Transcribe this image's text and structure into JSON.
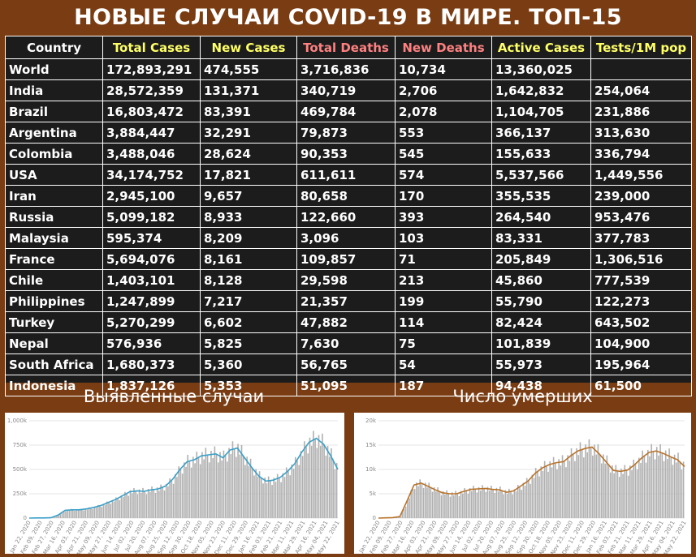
{
  "title": "НОВЫЕ СЛУЧАИ COVID-19 В МИРЕ. ТОП-15",
  "table": {
    "headers": [
      {
        "label": "Country",
        "color": "#ffffff"
      },
      {
        "label": "Total Cases",
        "color": "#ffff66"
      },
      {
        "label": "New Cases",
        "color": "#ffff66"
      },
      {
        "label": "Total Deaths",
        "color": "#ff8080"
      },
      {
        "label": "New Deaths",
        "color": "#ff8080"
      },
      {
        "label": "Active Cases",
        "color": "#ffff66"
      },
      {
        "label": "Tests/1M pop",
        "color": "#ffff66"
      }
    ],
    "rows": [
      [
        "World",
        "172,893,291",
        "474,555",
        "3,716,836",
        "10,734",
        "13,360,025",
        ""
      ],
      [
        "India",
        "28,572,359",
        "131,371",
        "340,719",
        "2,706",
        "1,642,832",
        "254,064"
      ],
      [
        "Brazil",
        "16,803,472",
        "83,391",
        "469,784",
        "2,078",
        "1,104,705",
        "231,886"
      ],
      [
        "Argentina",
        "3,884,447",
        "32,291",
        "79,873",
        "553",
        "366,137",
        "313,630"
      ],
      [
        "Colombia",
        "3,488,046",
        "28,624",
        "90,353",
        "545",
        "155,633",
        "336,794"
      ],
      [
        "USA",
        "34,174,752",
        "17,821",
        "611,611",
        "574",
        "5,537,566",
        "1,449,556"
      ],
      [
        "Iran",
        "2,945,100",
        "9,657",
        "80,658",
        "170",
        "355,535",
        "239,000"
      ],
      [
        "Russia",
        "5,099,182",
        "8,933",
        "122,660",
        "393",
        "264,540",
        "953,476"
      ],
      [
        "Malaysia",
        "595,374",
        "8,209",
        "3,096",
        "103",
        "83,331",
        "377,783"
      ],
      [
        "France",
        "5,694,076",
        "8,161",
        "109,857",
        "71",
        "205,849",
        "1,306,516"
      ],
      [
        "Chile",
        "1,403,101",
        "8,128",
        "29,598",
        "213",
        "45,860",
        "777,539"
      ],
      [
        "Philippines",
        "1,247,899",
        "7,217",
        "21,357",
        "199",
        "55,790",
        "122,273"
      ],
      [
        "Turkey",
        "5,270,299",
        "6,602",
        "47,882",
        "114",
        "82,424",
        "643,502"
      ],
      [
        "Nepal",
        "576,936",
        "5,825",
        "7,630",
        "75",
        "101,839",
        "104,900"
      ],
      [
        "South Africa",
        "1,680,373",
        "5,360",
        "56,765",
        "54",
        "55,973",
        "195,964"
      ],
      [
        "Indonesia",
        "1,837,126",
        "5,353",
        "51,095",
        "187",
        "94,438",
        "61,500"
      ]
    ]
  },
  "panels": {
    "cases_title": "Выявленные случаи",
    "deaths_title": "Число умерших"
  },
  "chart_data": [
    {
      "type": "bar",
      "title": "Выявленные случаи",
      "line_color": "#3aa0c8",
      "bar_color": "#b0b0b0",
      "y_ticks": [
        "0",
        "250k",
        "500k",
        "750k",
        "1,000k"
      ],
      "ylim": [
        0,
        1000000
      ],
      "x_ticks": [
        "Jan 22, 2020",
        "Feb 09, 2020",
        "Feb 27, 2020",
        "Mar 16, 2020",
        "Apr 03, 2020",
        "Apr 21, 2020",
        "May 09, 2020",
        "May 27, 2020",
        "Jun 14, 2020",
        "Jul 02, 2020",
        "Jul 20, 2020",
        "Aug 07, 2020",
        "Aug 25, 2020",
        "Sep 12, 2020",
        "Sep 30, 2020",
        "Oct 18, 2020",
        "Nov 05, 2020",
        "Nov 23, 2020",
        "Dec 11, 2020",
        "Dec 29, 2020",
        "Jan 16, 2021",
        "Feb 03, 2021",
        "Feb 21, 2021",
        "Mar 11, 2021",
        "Mar 29, 2021",
        "Apr 16, 2021",
        "May 04, 2021",
        "May 22, 2021"
      ],
      "values": [
        0,
        2000,
        2000,
        3000,
        30000,
        80000,
        85000,
        85000,
        95000,
        110000,
        130000,
        160000,
        190000,
        230000,
        270000,
        280000,
        275000,
        290000,
        300000,
        330000,
        400000,
        500000,
        580000,
        600000,
        640000,
        650000,
        660000,
        620000,
        700000,
        720000,
        620000,
        520000,
        430000,
        380000,
        390000,
        420000,
        480000,
        560000,
        680000,
        780000,
        820000,
        760000,
        640000,
        500000
      ]
    },
    {
      "type": "bar",
      "title": "Число умерших",
      "line_color": "#b8732a",
      "bar_color": "#b0b0b0",
      "y_ticks": [
        "0",
        "5k",
        "10k",
        "15k",
        "20k"
      ],
      "ylim": [
        0,
        20000
      ],
      "x_ticks": [
        "Jan 22, 2020",
        "Feb 09, 2020",
        "Feb 27, 2020",
        "Mar 16, 2020",
        "Apr 03, 2020",
        "Apr 21, 2020",
        "May 09, 2020",
        "May 27, 2020",
        "Jun 14, 2020",
        "Jul 02, 2020",
        "Jul 20, 2020",
        "Aug 07, 2020",
        "Aug 25, 2020",
        "Sep 12, 2020",
        "Sep 30, 2020",
        "Oct 18, 2020",
        "Nov 05, 2020",
        "Nov 23, 2020",
        "Dec 11, 2020",
        "Dec 29, 2020",
        "Jan 16, 2021",
        "Feb 03, 2021",
        "Feb 21, 2021",
        "Mar 11, 2021",
        "Mar 29, 2021",
        "Apr 16, 2021",
        "May 04, 2021",
        "May 22, 2021"
      ],
      "values": [
        0,
        50,
        100,
        300,
        3500,
        6800,
        7200,
        6500,
        5800,
        5200,
        5000,
        5000,
        5500,
        5900,
        6000,
        6100,
        5900,
        5800,
        5300,
        5600,
        6600,
        7600,
        9200,
        10300,
        11000,
        11400,
        11600,
        12800,
        13800,
        14300,
        14600,
        13200,
        11500,
        9800,
        9600,
        9900,
        11000,
        12400,
        13500,
        13800,
        13300,
        12600,
        12000,
        10600
      ]
    }
  ]
}
